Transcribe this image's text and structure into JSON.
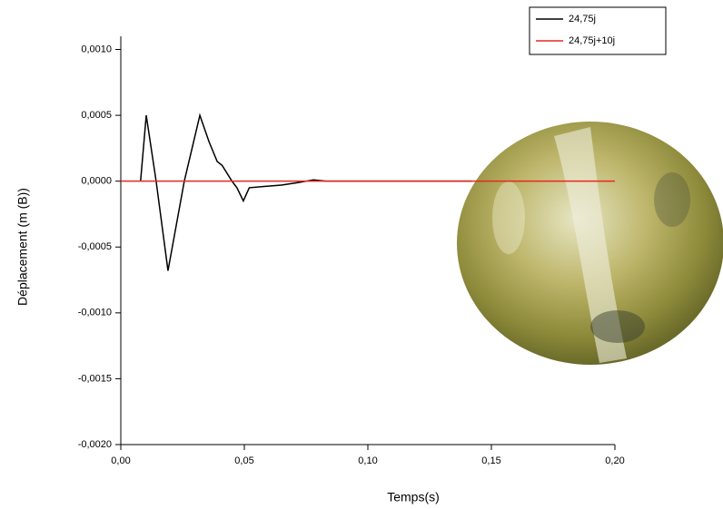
{
  "chart_data": {
    "type": "line",
    "x_label": "Temps(s)",
    "y_label": "Déplacement (m (B))",
    "xlim": [
      0,
      0.2
    ],
    "ylim": [
      -0.002,
      0.0011
    ],
    "xticks": [
      {
        "value": 0,
        "label": "0,00"
      },
      {
        "value": 0.05,
        "label": "0,05"
      },
      {
        "value": 0.1,
        "label": "0,10"
      },
      {
        "value": 0.15,
        "label": "0,15"
      },
      {
        "value": 0.2,
        "label": "0,20"
      }
    ],
    "yticks": [
      {
        "value": -0.002,
        "label": "-0,0020"
      },
      {
        "value": -0.0015,
        "label": "-0,0015"
      },
      {
        "value": -0.001,
        "label": "-0,0010"
      },
      {
        "value": -0.0005,
        "label": "-0,0005"
      },
      {
        "value": 0,
        "label": "0,0000"
      },
      {
        "value": 0.0005,
        "label": "0,0005"
      },
      {
        "value": 0.001,
        "label": "0,0010"
      }
    ],
    "legend": "top-right",
    "series": [
      {
        "name": "24,75j",
        "color": "#000000",
        "x": [
          0.008,
          0.0103,
          0.0143,
          0.0191,
          0.0257,
          0.032,
          0.0357,
          0.039,
          0.041,
          0.045,
          0.047,
          0.0496,
          0.052,
          0.058,
          0.065,
          0.072,
          0.078,
          0.083,
          0.142
        ],
        "values": [
          0,
          0.0005,
          0,
          -0.00068,
          0,
          0.0005,
          0.0003,
          0.00015,
          0.00012,
          0,
          -5e-05,
          -0.00015,
          -5e-05,
          -4e-05,
          -3e-05,
          -1e-05,
          1e-05,
          0,
          0
        ]
      },
      {
        "name": "24,75j+10j",
        "color": "#e8281e",
        "x": [
          0,
          0.2
        ],
        "values": [
          0,
          0
        ]
      }
    ]
  }
}
